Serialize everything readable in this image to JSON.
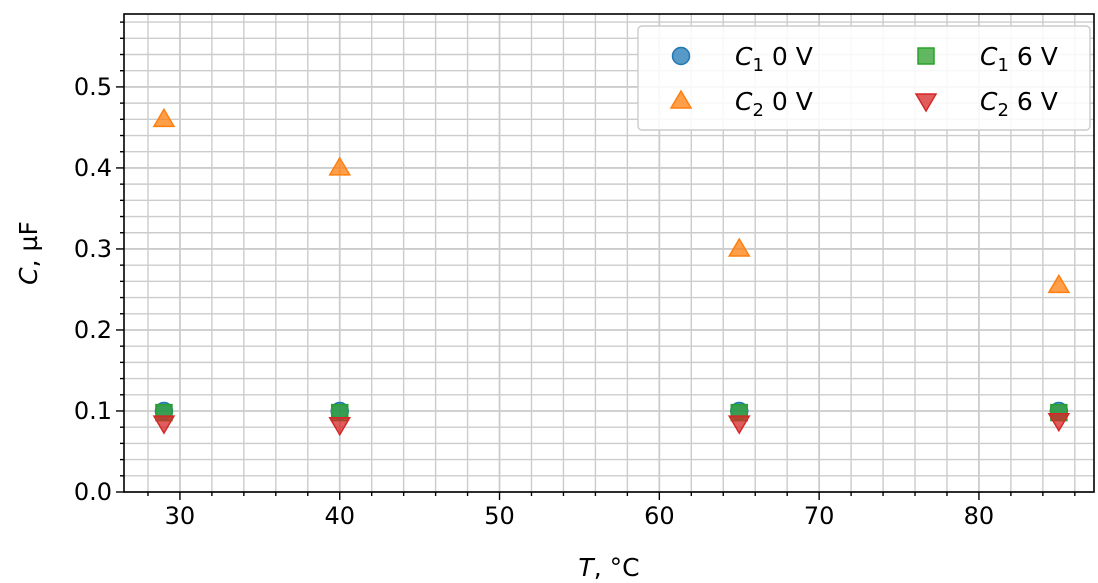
{
  "chart_data": {
    "type": "scatter",
    "xlabel": "T, °C",
    "ylabel": "C, µF",
    "xlim": [
      26.5,
      87.2
    ],
    "ylim": [
      0.0,
      0.59
    ],
    "xticks": [
      30,
      40,
      50,
      60,
      70,
      80
    ],
    "yticks": [
      0.0,
      0.1,
      0.2,
      0.3,
      0.4,
      0.5
    ],
    "xtick_labels": [
      "30",
      "40",
      "50",
      "60",
      "70",
      "80"
    ],
    "ytick_labels": [
      "0.0",
      "0.1",
      "0.2",
      "0.3",
      "0.4",
      "0.5"
    ],
    "grid": "major and minor",
    "legend_position": "top-right",
    "series": [
      {
        "name": "C1 0 V",
        "base": "C",
        "sub": "1",
        "suffix": "0 V",
        "marker": "circle",
        "color": "#1f77b4",
        "x": [
          29,
          40,
          65,
          85
        ],
        "y": [
          0.1,
          0.1,
          0.1,
          0.1
        ]
      },
      {
        "name": "C2 0 V",
        "base": "C",
        "sub": "2",
        "suffix": "0 V",
        "marker": "triangle-up",
        "color": "#ff7f0e",
        "x": [
          29,
          40,
          65,
          85
        ],
        "y": [
          0.46,
          0.4,
          0.3,
          0.255
        ]
      },
      {
        "name": "C1 6 V",
        "base": "C",
        "sub": "1",
        "suffix": "6 V",
        "marker": "square",
        "color": "#2ca02c",
        "x": [
          29,
          40,
          65,
          85
        ],
        "y": [
          0.098,
          0.098,
          0.098,
          0.098
        ]
      },
      {
        "name": "C2 6 V",
        "base": "C",
        "sub": "2",
        "suffix": "6 V",
        "marker": "triangle-down",
        "color": "#d62728",
        "x": [
          29,
          40,
          65,
          85
        ],
        "y": [
          0.085,
          0.083,
          0.085,
          0.088
        ]
      }
    ]
  }
}
